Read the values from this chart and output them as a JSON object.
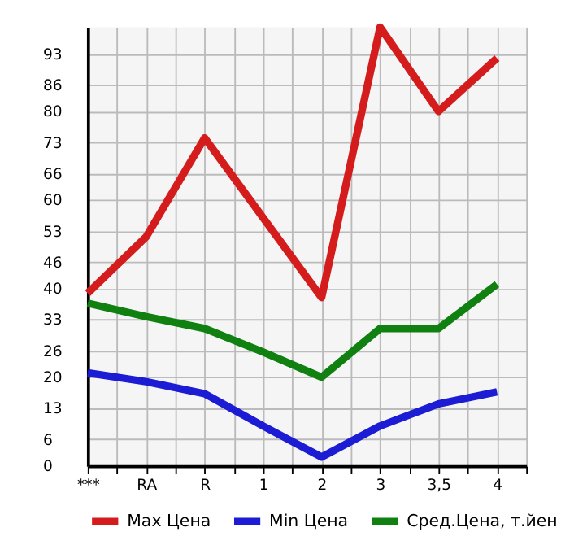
{
  "chart_data": {
    "type": "line",
    "categories": [
      "***",
      "RA",
      "R",
      "1",
      "2",
      "3",
      "3,5",
      "4"
    ],
    "series": [
      {
        "name": "Max Цена",
        "color": "#d41c1c",
        "values": [
          39,
          51.7,
          74,
          56,
          38,
          99,
          80,
          92
        ]
      },
      {
        "name": "Min Цена",
        "color": "#1c1cd4",
        "values": [
          21,
          19,
          16.3,
          9,
          2,
          9,
          14,
          16.7
        ]
      },
      {
        "name": "Сред.Цена, т.йен",
        "color": "#108010",
        "values": [
          36.7,
          33.7,
          31,
          25.7,
          20,
          31,
          31,
          41
        ]
      }
    ],
    "ylim": [
      0,
      99
    ],
    "yticks": [
      0,
      6,
      13,
      20,
      26,
      33,
      40,
      46,
      53,
      60,
      66,
      73,
      80,
      86,
      93
    ],
    "grid": true,
    "legend": "bottom",
    "marker": "none",
    "line_style": "solid"
  }
}
